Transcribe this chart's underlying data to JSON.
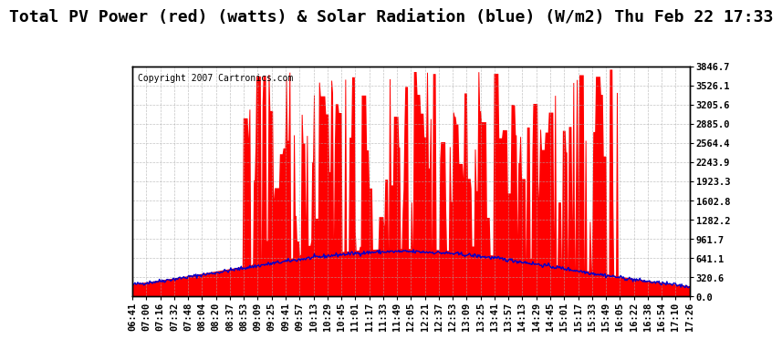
{
  "title": "Total PV Power (red) (watts) & Solar Radiation (blue) (W/m2) Thu Feb 22 17:33",
  "copyright": "Copyright 2007 Cartronics.com",
  "bg_color": "#ffffff",
  "plot_bg_color": "#ffffff",
  "grid_color": "#aaaaaa",
  "red_color": "#ff0000",
  "blue_color": "#0000cc",
  "ymax": 3846.7,
  "ymin": 0.0,
  "yticks": [
    0.0,
    320.6,
    641.1,
    961.7,
    1282.2,
    1602.8,
    1923.3,
    2243.9,
    2564.4,
    2885.0,
    3205.6,
    3526.1,
    3846.7
  ],
  "title_fontsize": 13,
  "tick_fontsize": 7.5,
  "copyright_fontsize": 7
}
